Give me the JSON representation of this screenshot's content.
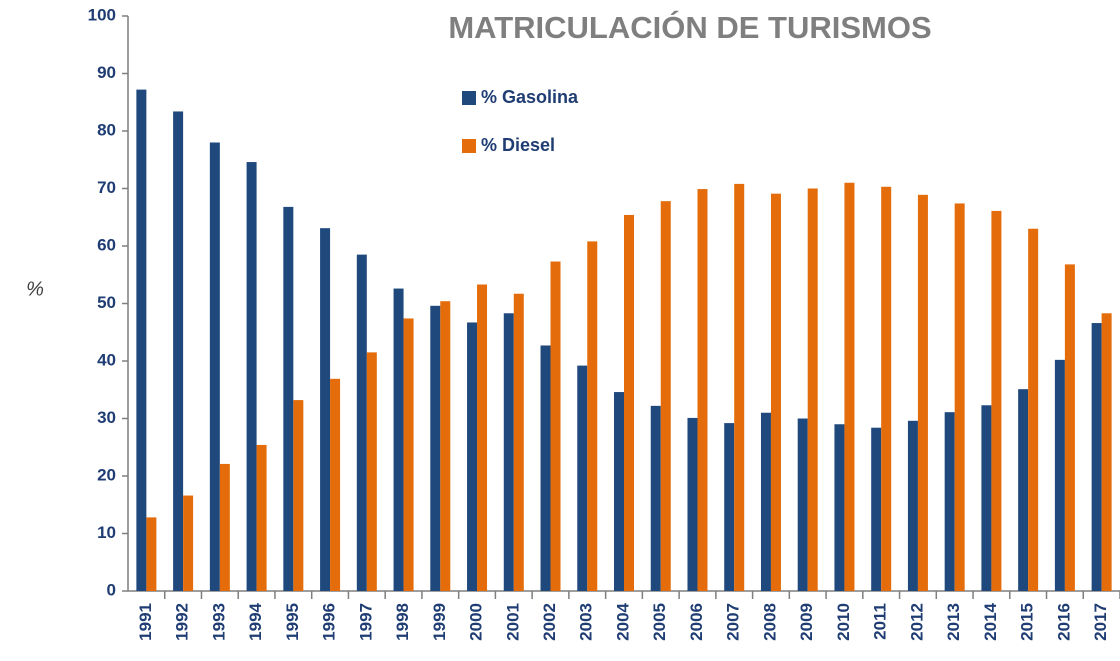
{
  "chart_data": {
    "type": "bar",
    "title": "MATRICULACIÓN DE TURISMOS",
    "y_label": "%",
    "categories": [
      "1991",
      "1992",
      "1993",
      "1994",
      "1995",
      "1996",
      "1997",
      "1998",
      "1999",
      "2000",
      "2001",
      "2002",
      "2003",
      "2004",
      "2005",
      "2006",
      "2007",
      "2008",
      "2009",
      "2010",
      "2011",
      "2012",
      "2013",
      "2014",
      "2015",
      "2016",
      "2017"
    ],
    "series": [
      {
        "name": "% Gasolina",
        "color": "#1f497d",
        "values": [
          87.2,
          83.4,
          78,
          74.6,
          66.8,
          63.1,
          58.5,
          52.6,
          49.6,
          46.7,
          48.3,
          42.7,
          39.2,
          34.6,
          32.2,
          30.1,
          29.2,
          31,
          30,
          29,
          28.4,
          29.6,
          31.1,
          32.3,
          35.1,
          40.2,
          46.6
        ]
      },
      {
        "name": "% Diesel",
        "color": "#e46c0a",
        "values": [
          12.8,
          16.6,
          22.1,
          25.4,
          33.2,
          36.9,
          41.5,
          47.4,
          50.4,
          53.3,
          51.7,
          57.3,
          60.8,
          65.4,
          67.8,
          69.9,
          70.8,
          69.1,
          70,
          71,
          70.3,
          68.9,
          67.4,
          66.1,
          63,
          56.8,
          48.3
        ]
      }
    ],
    "ylim": [
      0,
      100
    ],
    "yticks": [
      0,
      10,
      20,
      30,
      40,
      50,
      60,
      70,
      80,
      90,
      100
    ],
    "grid": false
  }
}
